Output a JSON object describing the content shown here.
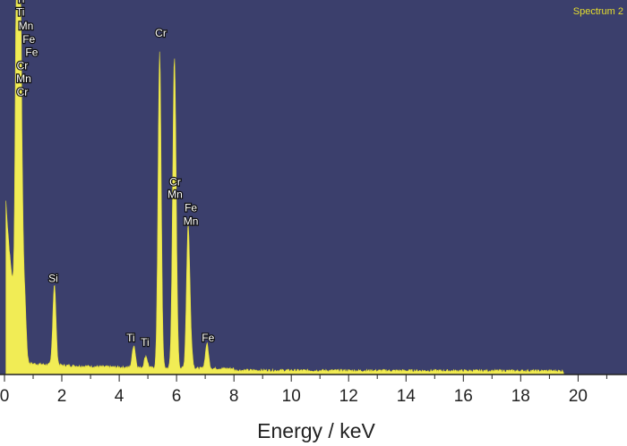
{
  "chart_data": {
    "type": "area",
    "title": "Spectrum 2",
    "xlabel": "Energy / keV",
    "ylabel": "",
    "xlim": [
      0,
      21.3
    ],
    "ylim": [
      0,
      1200
    ],
    "x_ticks": [
      "0",
      "2",
      "4",
      "6",
      "8",
      "10",
      "12",
      "14",
      "16",
      "18",
      "20"
    ],
    "colors": {
      "background": "#3b3f6c",
      "fill": "#f1ec55",
      "stroke": "#e6df3a",
      "title": "#e6de2e"
    },
    "peaks": [
      {
        "element": "Ti",
        "energy": 0.45,
        "height": 1600
      },
      {
        "element": "Cr",
        "energy": 0.57,
        "height": 870
      },
      {
        "element": "Fe",
        "energy": 0.7,
        "height": 210
      },
      {
        "element": "Si",
        "energy": 1.74,
        "height": 260
      },
      {
        "element": "Ti",
        "energy": 4.51,
        "height": 72
      },
      {
        "element": "Ti",
        "energy": 4.93,
        "height": 38
      },
      {
        "element": "Cr",
        "energy": 5.41,
        "height": 1010
      },
      {
        "element": "Mn",
        "energy": 5.9,
        "height": 540
      },
      {
        "element": "Cr",
        "energy": 5.95,
        "height": 560
      },
      {
        "element": "Fe",
        "energy": 6.4,
        "height": 440
      },
      {
        "element": "Mn",
        "energy": 6.49,
        "height": 80
      },
      {
        "element": "Fe",
        "energy": 7.06,
        "height": 80
      }
    ],
    "annotations": [
      {
        "text": "Ti",
        "x": 0.55,
        "y": 1192
      },
      {
        "text": "Ti",
        "x": 0.55,
        "y": 1150
      },
      {
        "text": "Mn",
        "x": 0.75,
        "y": 1106
      },
      {
        "text": "Fe",
        "x": 0.85,
        "y": 1063
      },
      {
        "text": "Fe",
        "x": 0.95,
        "y": 1021
      },
      {
        "text": "Cr",
        "x": 0.62,
        "y": 978
      },
      {
        "text": "Mn",
        "x": 0.67,
        "y": 937
      },
      {
        "text": "Cr",
        "x": 0.62,
        "y": 894
      },
      {
        "text": "Cr",
        "x": 5.45,
        "y": 1082
      },
      {
        "text": "Cr",
        "x": 5.95,
        "y": 606
      },
      {
        "text": "Mn",
        "x": 5.95,
        "y": 565
      },
      {
        "text": "Fe",
        "x": 6.5,
        "y": 522
      },
      {
        "text": "Mn",
        "x": 6.5,
        "y": 480
      },
      {
        "text": "Si",
        "x": 1.7,
        "y": 297
      },
      {
        "text": "Ti",
        "x": 4.4,
        "y": 106
      },
      {
        "text": "Ti",
        "x": 4.9,
        "y": 92
      },
      {
        "text": "Fe",
        "x": 7.1,
        "y": 106
      }
    ]
  }
}
